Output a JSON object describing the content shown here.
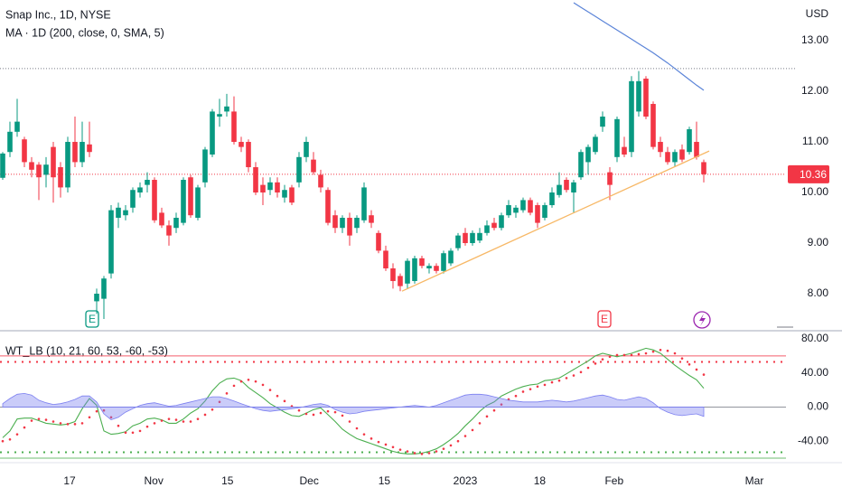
{
  "chart_data": [
    {
      "type": "candlestick",
      "title": "Snap Inc., 1D, NYSE",
      "currency": "USD",
      "up_color": "#089981",
      "down_color": "#f23645",
      "open": [
        10.29,
        10.8,
        11.2,
        11.05,
        10.6,
        10.55,
        10.35,
        10.9,
        10.5,
        10.1,
        11.0,
        10.6,
        10.95,
        7.85,
        7.9,
        8.4,
        9.5,
        9.55,
        9.7,
        10.0,
        10.15,
        10.25,
        9.6,
        9.35,
        9.3,
        9.4,
        10.3,
        9.5,
        10.2,
        10.75,
        11.5,
        11.6,
        11.6,
        11.0,
        11.0,
        10.5,
        10.15,
        10.05,
        10.2,
        9.9,
        10.1,
        10.2,
        10.7,
        10.65,
        10.35,
        10.05,
        9.55,
        9.3,
        9.5,
        9.3,
        9.45,
        9.55,
        9.2,
        8.85,
        8.5,
        8.35,
        8.2,
        8.25,
        8.7,
        8.5,
        8.55,
        8.45,
        8.6,
        8.9,
        9.2,
        9.0,
        9.05,
        9.2,
        9.4,
        9.3,
        9.55,
        9.6,
        9.65,
        9.85,
        9.75,
        9.5,
        9.75,
        9.95,
        10.25,
        10.0,
        10.3,
        10.6,
        10.8,
        11.3,
        10.4,
        10.7,
        10.9,
        10.8,
        11.6,
        12.25,
        11.75,
        11.0,
        10.8,
        10.6,
        10.85,
        10.8,
        11.0,
        10.6
      ],
      "high": [
        10.8,
        11.4,
        11.85,
        11.1,
        10.7,
        10.6,
        10.7,
        11.0,
        10.6,
        11.1,
        11.5,
        11.4,
        11.4,
        8.1,
        8.35,
        9.75,
        9.8,
        9.75,
        10.1,
        10.2,
        10.4,
        10.3,
        9.7,
        9.45,
        9.6,
        10.3,
        10.35,
        10.15,
        10.9,
        11.65,
        11.85,
        11.95,
        11.9,
        11.1,
        11.05,
        10.6,
        10.3,
        10.3,
        10.3,
        10.15,
        10.15,
        10.8,
        11.1,
        10.8,
        10.45,
        10.1,
        9.65,
        9.55,
        9.6,
        9.55,
        10.2,
        9.65,
        9.25,
        8.95,
        8.6,
        8.4,
        8.7,
        8.75,
        8.75,
        8.6,
        8.6,
        8.85,
        8.9,
        9.2,
        9.3,
        9.25,
        9.3,
        9.45,
        9.5,
        9.6,
        9.85,
        9.75,
        9.9,
        9.9,
        9.8,
        9.8,
        10.1,
        10.4,
        10.3,
        10.25,
        10.85,
        10.95,
        11.15,
        11.6,
        10.5,
        11.5,
        11.1,
        12.3,
        12.4,
        12.3,
        11.8,
        11.1,
        10.9,
        10.85,
        10.95,
        11.3,
        11.4,
        10.65
      ],
      "low": [
        10.25,
        10.7,
        11.1,
        10.5,
        10.3,
        9.85,
        10.1,
        9.8,
        9.9,
        10.0,
        10.5,
        10.5,
        10.7,
        7.6,
        7.5,
        8.3,
        9.3,
        9.45,
        9.6,
        9.9,
        10.0,
        9.4,
        9.3,
        8.95,
        9.2,
        9.35,
        9.5,
        9.45,
        10.1,
        10.7,
        11.3,
        11.5,
        10.95,
        10.8,
        10.4,
        9.95,
        9.75,
        9.95,
        9.9,
        9.8,
        9.75,
        10.1,
        10.6,
        10.35,
        10.0,
        9.35,
        9.2,
        9.2,
        8.95,
        9.2,
        9.4,
        9.3,
        8.8,
        8.45,
        8.1,
        8.05,
        8.1,
        8.2,
        8.5,
        8.4,
        8.4,
        8.4,
        8.55,
        8.85,
        8.95,
        8.95,
        9.0,
        9.15,
        9.25,
        9.25,
        9.5,
        9.5,
        9.6,
        9.55,
        9.3,
        9.45,
        9.7,
        9.9,
        10.0,
        9.6,
        10.25,
        10.35,
        10.75,
        11.2,
        9.85,
        10.6,
        10.7,
        10.7,
        11.5,
        11.45,
        10.85,
        10.7,
        10.55,
        10.5,
        10.6,
        10.75,
        10.65,
        10.2
      ],
      "close": [
        10.77,
        11.2,
        11.4,
        10.6,
        10.45,
        10.3,
        10.55,
        10.3,
        10.1,
        11.0,
        10.6,
        11.0,
        10.8,
        8.0,
        8.3,
        9.65,
        9.7,
        9.65,
        10.05,
        10.1,
        10.25,
        9.45,
        9.35,
        9.15,
        9.5,
        10.25,
        9.55,
        10.1,
        10.85,
        11.6,
        11.55,
        11.7,
        11.0,
        10.9,
        10.5,
        10.0,
        10.0,
        10.2,
        10.0,
        10.05,
        9.8,
        10.7,
        11.0,
        10.4,
        10.1,
        9.4,
        9.3,
        9.5,
        9.15,
        9.5,
        10.1,
        9.4,
        8.85,
        8.5,
        8.25,
        8.15,
        8.65,
        8.7,
        8.55,
        8.55,
        8.45,
        8.8,
        8.85,
        9.15,
        9.0,
        9.2,
        9.2,
        9.35,
        9.3,
        9.55,
        9.75,
        9.7,
        9.85,
        9.6,
        9.4,
        9.75,
        10.0,
        10.15,
        10.05,
        10.2,
        10.8,
        10.9,
        11.1,
        11.5,
        10.15,
        11.45,
        10.75,
        12.2,
        12.2,
        11.5,
        10.9,
        10.8,
        10.6,
        10.8,
        10.65,
        11.25,
        10.7,
        10.36
      ],
      "series": [
        {
          "name": "MA · 1D (200, close, 0, SMA, 5)",
          "color": "#5b84d8",
          "values": [
            null,
            null,
            null,
            null,
            null,
            null,
            null,
            null,
            null,
            null,
            null,
            null,
            null,
            null,
            null,
            null,
            null,
            null,
            null,
            null,
            null,
            null,
            null,
            null,
            null,
            null,
            null,
            null,
            null,
            null,
            null,
            null,
            null,
            null,
            null,
            null,
            null,
            null,
            null,
            null,
            null,
            null,
            null,
            null,
            null,
            null,
            null,
            null,
            null,
            null,
            null,
            null,
            null,
            null,
            null,
            null,
            null,
            null,
            null,
            null,
            null,
            null,
            null,
            null,
            null,
            null,
            null,
            null,
            null,
            null,
            null,
            null,
            null,
            null,
            null,
            null,
            null,
            null,
            null,
            13.75,
            13.66,
            13.57,
            13.48,
            13.39,
            13.3,
            13.21,
            13.12,
            13.03,
            12.94,
            12.85,
            12.76,
            12.66,
            12.56,
            12.45,
            12.34,
            12.23,
            12.12,
            12.02
          ]
        }
      ],
      "trendline": {
        "x": [
          55.25,
          97.75
        ],
        "y": [
          8.05,
          10.82
        ],
        "color": "#f7b866"
      },
      "hlines": [
        12.45
      ],
      "hline_color": "#787b86",
      "events": [
        "E",
        "E"
      ],
      "xlim": [
        -0.375,
        108.375
      ],
      "xticks": [
        {
          "value": 9.25,
          "label": "17"
        },
        {
          "value": 20.9,
          "label": "Nov"
        },
        {
          "value": 31.1,
          "label": "15"
        },
        {
          "value": 42.4,
          "label": "Dec"
        },
        {
          "value": 52.8,
          "label": "15"
        },
        {
          "value": 64,
          "label": "2023"
        },
        {
          "value": 74.3,
          "label": "18"
        },
        {
          "value": 84.6,
          "label": "Feb"
        },
        {
          "value": 104,
          "label": "Mar"
        }
      ],
      "ylim": [
        7.286,
        13.804
      ],
      "yticks": [
        {
          "value": 8,
          "label": "8.00"
        },
        {
          "value": 9,
          "label": "9.00"
        },
        {
          "value": 10,
          "label": "10.00"
        },
        {
          "value": 11,
          "label": "11.00"
        },
        {
          "value": 12,
          "label": "12.00"
        },
        {
          "value": 13,
          "label": "13.00"
        }
      ],
      "grid": false
    },
    {
      "type": "line",
      "title": "WT_LB (10, 21, 60, 53, -60, -53)",
      "series": [
        {
          "color": "#4caf50",
          "style": "line",
          "values": [
            -36,
            -28,
            -14,
            -13,
            -13,
            -16,
            -19,
            -20,
            -21,
            -20,
            -17,
            -2,
            10,
            2,
            -28,
            -32,
            -31,
            -29,
            -22,
            -19,
            -14,
            -13,
            -15,
            -19,
            -19,
            -14,
            -7,
            -2,
            7,
            19,
            28,
            33,
            34,
            31,
            23,
            17,
            11,
            4,
            -1,
            -6,
            -10,
            -11,
            -7,
            -3,
            -1,
            -9,
            -17,
            -26,
            -32,
            -37,
            -40,
            -43,
            -46,
            -49,
            -52,
            -54,
            -55,
            -55,
            -54,
            -52,
            -49,
            -44,
            -38,
            -31,
            -22,
            -14,
            -5,
            2,
            6,
            13,
            17,
            21,
            24,
            26,
            27,
            31,
            32,
            34,
            39,
            44,
            49,
            54,
            60,
            63,
            61,
            59,
            61,
            63,
            66,
            69,
            67,
            63,
            56,
            49,
            43,
            37,
            32,
            22
          ]
        },
        {
          "color": "#f23645",
          "style": "dots",
          "values": [
            -40,
            -38,
            -32,
            -24,
            -16,
            -14,
            -15,
            -17,
            -19,
            -20,
            -20,
            -19,
            -12,
            -5,
            -4,
            -12,
            -22,
            -30,
            -30,
            -28,
            -23,
            -19,
            -16,
            -14,
            -15,
            -17,
            -17,
            -14,
            -9,
            -3,
            6,
            16,
            25,
            30,
            32,
            30,
            26,
            20,
            13,
            7,
            1,
            -4,
            -8,
            -9,
            -7,
            -5,
            -6,
            -10,
            -17,
            -25,
            -32,
            -37,
            -41,
            -44,
            -47,
            -50,
            -52,
            -54,
            -55,
            -54,
            -52,
            -49,
            -45,
            -40,
            -34,
            -27,
            -19,
            -11,
            -4,
            3,
            9,
            13,
            18,
            21,
            24,
            26,
            29,
            31,
            34,
            37,
            41,
            46,
            51,
            56,
            59,
            61,
            61,
            61,
            62,
            63,
            65,
            67,
            66,
            63,
            57,
            50,
            44,
            38
          ]
        },
        {
          "color": "#7b7ff0",
          "style": "area",
          "values": [
            4,
            10,
            15,
            16,
            14,
            8,
            5,
            3,
            4,
            6,
            9,
            13,
            13,
            6,
            -8,
            -15,
            -12,
            -6,
            -2,
            2,
            4,
            5,
            3,
            1,
            2,
            4,
            6,
            8,
            10,
            12,
            12,
            10,
            7,
            4,
            1,
            -2,
            -4,
            -5,
            -4,
            -3,
            -2,
            -1,
            1,
            3,
            4,
            2,
            -3,
            -6,
            -8,
            -7,
            -5,
            -4,
            -3,
            -2,
            -1,
            0,
            1,
            2,
            1,
            0,
            2,
            5,
            8,
            11,
            14,
            15,
            15,
            14,
            12,
            10,
            8,
            7,
            6,
            6,
            6,
            7,
            8,
            7,
            6,
            7,
            9,
            11,
            13,
            14,
            12,
            9,
            8,
            10,
            12,
            10,
            5,
            -2,
            -6,
            -9,
            -10,
            -9,
            -8,
            -11
          ]
        }
      ],
      "levels": [
        60,
        53,
        0,
        -53,
        -60
      ],
      "level_colors": [
        "#f23645",
        "#f23645",
        "#787b86",
        "#4caf50",
        "#4caf50"
      ],
      "level_dashed": [
        false,
        true,
        false,
        true,
        false
      ],
      "ylim": [
        -61,
        87.4
      ],
      "yticks": [
        {
          "value": -40,
          "label": "-40.00"
        },
        {
          "value": 0,
          "label": "0.00"
        },
        {
          "value": 40,
          "label": "40.00"
        },
        {
          "value": 80,
          "label": "80.00"
        }
      ],
      "grid": false
    }
  ]
}
